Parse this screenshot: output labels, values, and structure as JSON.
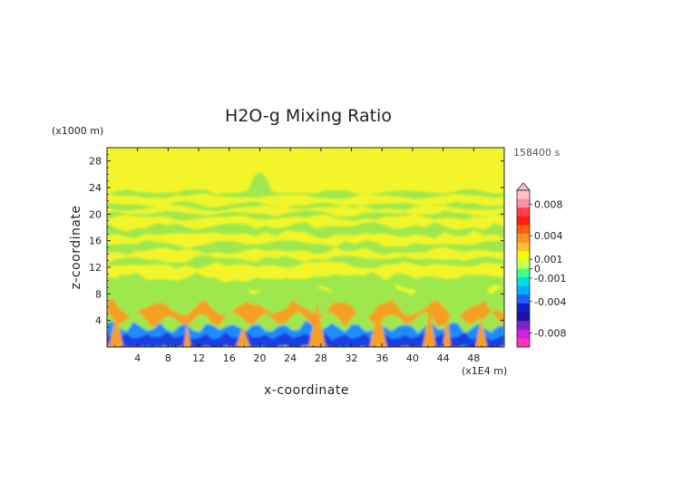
{
  "chart_data": {
    "type": "heatmap",
    "title": "H2O-g Mixing Ratio",
    "xlabel": "x-coordinate",
    "ylabel": "z-coordinate",
    "x_unit": "(x1E4 m)",
    "y_unit": "(x1000 m)",
    "time_label": "158400 s",
    "xlim": [
      0,
      52
    ],
    "ylim": [
      0,
      30
    ],
    "x_ticks": [
      "4",
      "8",
      "12",
      "16",
      "20",
      "24",
      "28",
      "32",
      "36",
      "40",
      "44",
      "48"
    ],
    "y_ticks": [
      "4",
      "8",
      "12",
      "16",
      "20",
      "24",
      "28"
    ],
    "colorbar": {
      "labels": [
        "0.008",
        "0.004",
        "0.001",
        "0",
        "-0.001",
        "-0.004",
        "-0.008"
      ],
      "colors": [
        "#ffc0c8",
        "#ff90a0",
        "#ff4050",
        "#ff2010",
        "#ff6010",
        "#ff9020",
        "#ffbf30",
        "#f0ff00",
        "#c8ff50",
        "#40ff90",
        "#00e0e0",
        "#00b0ff",
        "#2060ff",
        "#1020d0",
        "#2010a0",
        "#8020d0",
        "#d020e0",
        "#ff30c0"
      ],
      "extend": "max"
    },
    "description_bands": {
      "background": "#f2f52a",
      "positive_band": "#9ee84e",
      "warm_band": "#f5a020",
      "cold_band": "#1a8cff",
      "deep_band": "#1f3ce0"
    }
  }
}
